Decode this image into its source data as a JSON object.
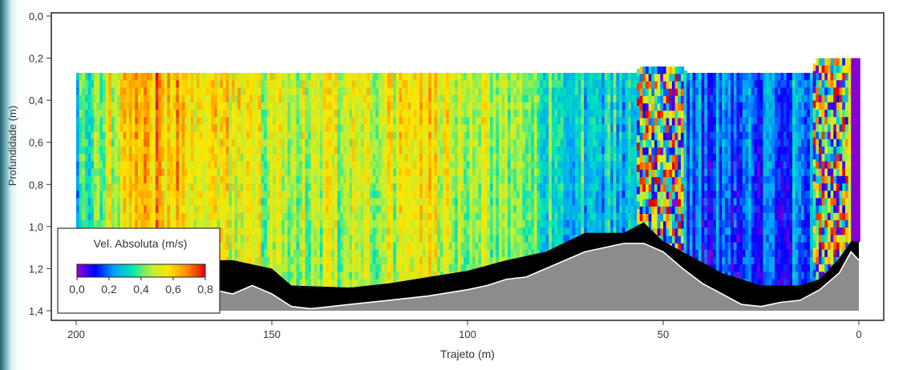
{
  "chart_data": {
    "type": "heatmap",
    "title": "",
    "xlabel": "Trajeto (m)",
    "ylabel": "Profundidade (m)",
    "xlim": [
      200,
      0
    ],
    "ylim": [
      1.4,
      0.0
    ],
    "x_ticks": [
      200,
      150,
      100,
      50,
      0
    ],
    "x_tick_labels": [
      "200",
      "150",
      "100",
      "50",
      "0"
    ],
    "y_ticks": [
      0.0,
      0.2,
      0.4,
      0.6,
      0.8,
      1.0,
      1.2,
      1.4
    ],
    "y_tick_labels": [
      "0,0",
      "0,2",
      "0,4",
      "0,6",
      "0,8",
      "1,0",
      "1,2",
      "1,4"
    ],
    "grid": false,
    "legend": {
      "title": "Vel. Absoluta (m/s)",
      "placement": "bottom-left",
      "range": [
        0.0,
        0.8
      ],
      "tick_labels": [
        "0,0",
        "0,2",
        "0,4",
        "0,6",
        "0,8"
      ],
      "colormap": [
        "#9400d3",
        "#0000ff",
        "#00a0ff",
        "#00e6b4",
        "#b4f03c",
        "#ffe600",
        "#ff8c00",
        "#e60000"
      ]
    },
    "colors": {
      "riverbed": "#8c8c8c",
      "blanking": "#000000",
      "bed_line": "#ffffff"
    },
    "velocity_profile": {
      "x": [
        200,
        190,
        180,
        170,
        160,
        150,
        140,
        130,
        120,
        110,
        100,
        90,
        80,
        70,
        60,
        55,
        50,
        45,
        40,
        30,
        20,
        10,
        5,
        2,
        0
      ],
      "mean_velocity": [
        0.35,
        0.55,
        0.65,
        0.6,
        0.55,
        0.5,
        0.5,
        0.5,
        0.55,
        0.55,
        0.5,
        0.45,
        0.4,
        0.35,
        0.3,
        0.4,
        0.25,
        0.25,
        0.2,
        0.2,
        0.2,
        0.3,
        0.6,
        0.45,
        0.0
      ]
    },
    "data_top_depth": [
      {
        "x": 200,
        "depth": 0.27
      },
      {
        "x": 57,
        "depth": 0.27
      },
      {
        "x": 56,
        "depth": 0.24
      },
      {
        "x": 45,
        "depth": 0.24
      },
      {
        "x": 44,
        "depth": 0.27
      },
      {
        "x": 12,
        "depth": 0.27
      },
      {
        "x": 11,
        "depth": 0.2
      },
      {
        "x": 0,
        "depth": 0.2
      }
    ],
    "data_bottom_depth": [
      {
        "x": 200,
        "depth": 1.13
      },
      {
        "x": 190,
        "depth": 1.17
      },
      {
        "x": 180,
        "depth": 1.2
      },
      {
        "x": 170,
        "depth": 1.16
      },
      {
        "x": 160,
        "depth": 1.16
      },
      {
        "x": 150,
        "depth": 1.2
      },
      {
        "x": 145,
        "depth": 1.28
      },
      {
        "x": 130,
        "depth": 1.29
      },
      {
        "x": 120,
        "depth": 1.27
      },
      {
        "x": 110,
        "depth": 1.24
      },
      {
        "x": 100,
        "depth": 1.21
      },
      {
        "x": 90,
        "depth": 1.16
      },
      {
        "x": 80,
        "depth": 1.12
      },
      {
        "x": 70,
        "depth": 1.03
      },
      {
        "x": 60,
        "depth": 1.03
      },
      {
        "x": 55,
        "depth": 0.98
      },
      {
        "x": 50,
        "depth": 1.07
      },
      {
        "x": 45,
        "depth": 1.12
      },
      {
        "x": 40,
        "depth": 1.17
      },
      {
        "x": 35,
        "depth": 1.22
      },
      {
        "x": 25,
        "depth": 1.28
      },
      {
        "x": 15,
        "depth": 1.28
      },
      {
        "x": 10,
        "depth": 1.25
      },
      {
        "x": 5,
        "depth": 1.15
      },
      {
        "x": 2,
        "depth": 1.07
      },
      {
        "x": 0,
        "depth": 1.07
      }
    ],
    "bed_depth": [
      {
        "x": 200,
        "depth": 1.4
      },
      {
        "x": 195,
        "depth": 1.37
      },
      {
        "x": 190,
        "depth": 1.35
      },
      {
        "x": 185,
        "depth": 1.3
      },
      {
        "x": 180,
        "depth": 1.27
      },
      {
        "x": 175,
        "depth": 1.28
      },
      {
        "x": 170,
        "depth": 1.26
      },
      {
        "x": 165,
        "depth": 1.3
      },
      {
        "x": 160,
        "depth": 1.32
      },
      {
        "x": 155,
        "depth": 1.28
      },
      {
        "x": 150,
        "depth": 1.32
      },
      {
        "x": 145,
        "depth": 1.38
      },
      {
        "x": 140,
        "depth": 1.39
      },
      {
        "x": 130,
        "depth": 1.37
      },
      {
        "x": 120,
        "depth": 1.35
      },
      {
        "x": 110,
        "depth": 1.33
      },
      {
        "x": 100,
        "depth": 1.3
      },
      {
        "x": 95,
        "depth": 1.28
      },
      {
        "x": 90,
        "depth": 1.25
      },
      {
        "x": 85,
        "depth": 1.24
      },
      {
        "x": 80,
        "depth": 1.2
      },
      {
        "x": 75,
        "depth": 1.16
      },
      {
        "x": 70,
        "depth": 1.12
      },
      {
        "x": 65,
        "depth": 1.1
      },
      {
        "x": 60,
        "depth": 1.08
      },
      {
        "x": 55,
        "depth": 1.08
      },
      {
        "x": 50,
        "depth": 1.12
      },
      {
        "x": 45,
        "depth": 1.2
      },
      {
        "x": 40,
        "depth": 1.27
      },
      {
        "x": 35,
        "depth": 1.32
      },
      {
        "x": 30,
        "depth": 1.37
      },
      {
        "x": 25,
        "depth": 1.38
      },
      {
        "x": 20,
        "depth": 1.36
      },
      {
        "x": 15,
        "depth": 1.35
      },
      {
        "x": 10,
        "depth": 1.3
      },
      {
        "x": 5,
        "depth": 1.22
      },
      {
        "x": 2,
        "depth": 1.12
      },
      {
        "x": 0,
        "depth": 1.16
      }
    ]
  }
}
